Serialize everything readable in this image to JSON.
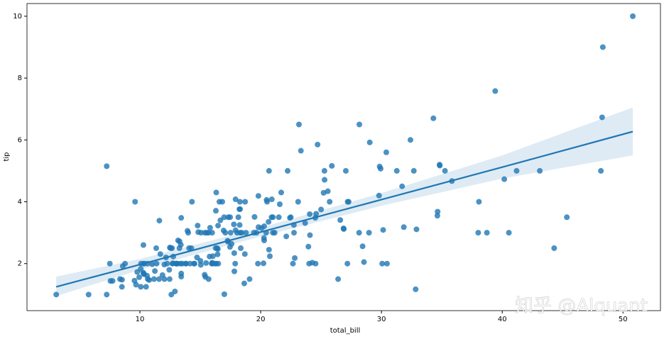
{
  "chart_data": {
    "type": "regplot",
    "xlabel": "total_bill",
    "ylabel": "tip",
    "watermark": "知乎 @Alquant",
    "color": "#1f77b4",
    "xlim": [
      0.65,
      53.1
    ],
    "ylim": [
      0.48,
      10.41
    ],
    "xticks": [
      10,
      20,
      30,
      40,
      50
    ],
    "yticks": [
      2,
      4,
      6,
      8,
      10
    ],
    "x": [
      16.99,
      10.34,
      21.01,
      23.68,
      24.59,
      25.29,
      8.77,
      26.88,
      15.04,
      14.78,
      10.27,
      35.26,
      15.42,
      18.43,
      14.83,
      21.58,
      10.33,
      16.29,
      16.97,
      20.65,
      17.92,
      20.29,
      15.77,
      39.42,
      19.82,
      17.81,
      13.37,
      12.69,
      21.7,
      19.65,
      9.55,
      18.35,
      15.06,
      20.69,
      17.78,
      24.06,
      16.31,
      16.93,
      18.69,
      31.27,
      16.04,
      17.46,
      13.94,
      9.68,
      30.4,
      18.29,
      22.23,
      32.4,
      28.55,
      18.04,
      12.54,
      10.29,
      34.81,
      9.94,
      25.56,
      19.49,
      38.01,
      26.41,
      11.24,
      48.27,
      20.29,
      13.81,
      11.02,
      18.29,
      17.59,
      20.08,
      16.45,
      3.07,
      20.23,
      15.01,
      12.02,
      17.07,
      26.86,
      25.28,
      14.73,
      10.51,
      17.92,
      27.2,
      22.76,
      17.29,
      19.44,
      16.66,
      10.07,
      32.68,
      15.98,
      34.83,
      13.03,
      18.28,
      24.71,
      21.16,
      28.97,
      22.49,
      5.75,
      16.32,
      22.75,
      40.17,
      27.28,
      12.03,
      21.01,
      12.46,
      11.35,
      15.38,
      44.3,
      22.42,
      20.92,
      15.36,
      20.49,
      25.21,
      18.24,
      14.31,
      14,
      7.25,
      38.07,
      23.95,
      25.71,
      17.31,
      29.93,
      10.65,
      12.43,
      24.08,
      11.69,
      13.42,
      14.26,
      15.95,
      12.48,
      29.8,
      8.52,
      14.52,
      11.38,
      22.82,
      19.08,
      20.27,
      11.17,
      12.26,
      18.26,
      8.51,
      10.33,
      14.15,
      16,
      13.16,
      17.47,
      34.3,
      41.19,
      27.05,
      16.43,
      8.35,
      18.64,
      11.87,
      9.78,
      7.51,
      14.07,
      13.13,
      17.26,
      24.55,
      19.77,
      29.85,
      48.17,
      25,
      13.39,
      16.49,
      21.5,
      12.66,
      16.21,
      13.81,
      17.51,
      24.52,
      20.76,
      31.71,
      10.59,
      10.63,
      50.81,
      15.81,
      7.25,
      31.85,
      16.82,
      32.9,
      17.89,
      14.48,
      9.6,
      34.63,
      34.65,
      23.33,
      45.35,
      23.17,
      40.55,
      20.69,
      20.9,
      30.46,
      18.15,
      23.1,
      15.69,
      19.81,
      28.44,
      15.48,
      16.58,
      7.56,
      10.34,
      43.11,
      13,
      13.51,
      18.71,
      12.74,
      13,
      16.4,
      20.53,
      16.47,
      26.59,
      38.73,
      24.27,
      12.76,
      30.06,
      25.89,
      48.33,
      13.27,
      28.17,
      12.9,
      28.15,
      11.59,
      7.74,
      30.14,
      12.16,
      13.42,
      8.58,
      15.98,
      13.42,
      16.27,
      10.09,
      20.45,
      13.28,
      22.12,
      24.01,
      15.69,
      11.61,
      10.77,
      15.53,
      10.07,
      12.6,
      32.83,
      35.83,
      29.03,
      27.18,
      22.67,
      17.82,
      18.78
    ],
    "values": [
      1.01,
      1.66,
      3.5,
      3.31,
      3.61,
      4.71,
      2,
      3.12,
      1.96,
      3.23,
      1.71,
      5,
      1.57,
      3,
      3.02,
      3.92,
      1.67,
      3.71,
      3.5,
      3.35,
      4.08,
      2.75,
      2.23,
      7.58,
      3.18,
      2.34,
      2,
      2,
      4.3,
      3,
      1.45,
      2.5,
      3,
      2.45,
      3.27,
      3.6,
      2,
      3.07,
      2.31,
      5,
      2.24,
      2.54,
      3.06,
      1.32,
      5.6,
      3,
      5,
      6,
      2.05,
      3,
      2.5,
      2.6,
      5.2,
      1.56,
      4.34,
      3.51,
      3,
      1.5,
      1.76,
      6.73,
      3.21,
      2,
      1.98,
      3.76,
      2.64,
      3.15,
      2.47,
      1,
      2.01,
      2.09,
      1.97,
      3,
      3.14,
      5,
      2.2,
      1.25,
      3.08,
      4,
      3,
      2.71,
      3,
      3.4,
      1.83,
      5,
      2.03,
      5.17,
      2,
      4,
      5.85,
      3,
      3,
      3.5,
      1,
      4.3,
      3.25,
      4.73,
      4,
      1.5,
      3,
      1.5,
      2.5,
      3,
      2.5,
      3.48,
      4.08,
      1.64,
      4.06,
      4.29,
      3.76,
      4,
      3,
      1,
      4,
      2.55,
      4,
      3.5,
      5.07,
      1.5,
      1.8,
      2.92,
      2.31,
      1.68,
      2.5,
      2,
      2.52,
      4.2,
      1.48,
      2,
      2,
      2.18,
      1.5,
      2.83,
      1.5,
      2,
      3.25,
      1.25,
      2,
      2,
      2,
      2.75,
      3.5,
      6.7,
      5,
      5,
      2.3,
      1.5,
      1.36,
      1.63,
      1.73,
      2,
      2.5,
      2,
      2.74,
      2,
      2,
      5.14,
      5,
      3.75,
      2.61,
      2,
      3.5,
      2.5,
      2,
      2,
      3,
      3.48,
      2.24,
      4.5,
      1.61,
      2,
      10,
      3.16,
      5.15,
      3.18,
      4,
      3.11,
      2,
      2,
      4,
      3.55,
      3.68,
      5.65,
      3.5,
      6.5,
      3,
      5,
      3.5,
      2,
      3.5,
      4,
      1.5,
      4.19,
      2.56,
      2.02,
      4,
      1.44,
      2,
      5,
      2,
      2,
      4,
      2.01,
      2,
      2.5,
      4,
      3.23,
      3.41,
      3,
      2.03,
      2.23,
      2,
      5.16,
      9,
      2.5,
      6.5,
      1.1,
      3,
      1.5,
      1.44,
      3.09,
      2.2,
      3.48,
      1.92,
      3,
      1.58,
      2.5,
      2,
      3,
      2.72,
      2.88,
      2,
      3,
      3.39,
      1.47,
      3,
      1.25,
      1,
      1.17,
      4.67,
      5.92,
      2,
      2,
      1.75,
      3
    ],
    "fit": {
      "x": [
        3.07,
        10,
        20,
        30,
        40,
        50.81
      ],
      "values": [
        1.25,
        1.97,
        3.02,
        4.07,
        5.12,
        6.27
      ],
      "ci_lower": [
        0.95,
        1.8,
        2.88,
        3.87,
        4.75,
        5.5
      ],
      "ci_upper": [
        1.58,
        2.15,
        3.16,
        4.28,
        5.5,
        7.05
      ]
    }
  }
}
